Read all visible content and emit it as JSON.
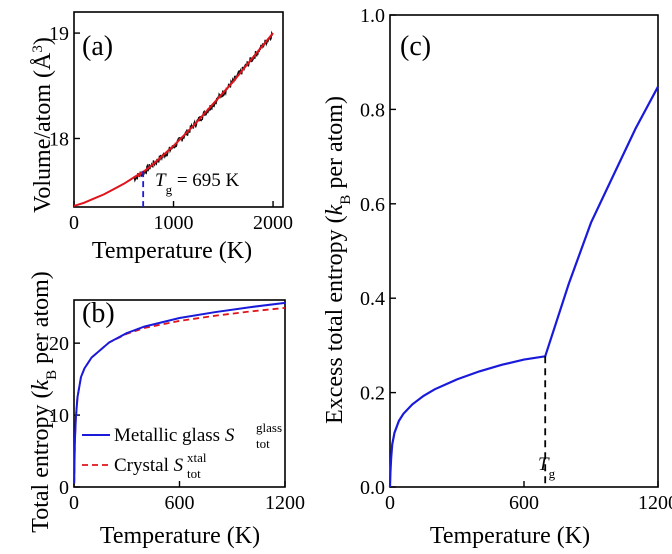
{
  "colors": {
    "glass": "#1a1adb",
    "crystal": "#e0141b",
    "noise": "#111111",
    "marker": "#1a1adb"
  },
  "chart_data": [
    {
      "id": "a",
      "panel_label": "(a)",
      "type": "line",
      "xlabel": "Temperature (K)",
      "ylabel_main": "Volume/atom (",
      "ylabel_unit": "Å",
      "ylabel_sup": "3",
      "ylabel_close": ")",
      "xlim": [
        0,
        2100
      ],
      "ylim": [
        17.35,
        19.2
      ],
      "xticks": [
        0,
        1000,
        2000
      ],
      "xtick_labels": [
        "0",
        "1000",
        "2000"
      ],
      "yticks": [
        18,
        19
      ],
      "ytick_labels": [
        "18",
        "19"
      ],
      "annotation": {
        "var": "T",
        "sub": "g",
        "rest": " = 695 K",
        "x": 695
      },
      "series": [
        {
          "style": "noisy",
          "x": [
            600,
            700,
            800,
            900,
            1000,
            1200,
            1400,
            1600,
            1800,
            2000
          ],
          "y": [
            17.62,
            17.68,
            17.76,
            17.84,
            17.92,
            18.12,
            18.33,
            18.54,
            18.77,
            19.0
          ]
        },
        {
          "style": "fit-low",
          "x": [
            0,
            100,
            200,
            300,
            400,
            500,
            600,
            700
          ],
          "y": [
            17.36,
            17.39,
            17.43,
            17.47,
            17.52,
            17.57,
            17.63,
            17.69
          ]
        },
        {
          "style": "fit-high",
          "x": [
            640,
            800,
            1000,
            1200,
            1400,
            1600,
            1800,
            2000
          ],
          "y": [
            17.64,
            17.76,
            17.93,
            18.12,
            18.33,
            18.54,
            18.77,
            19.0
          ]
        }
      ]
    },
    {
      "id": "b",
      "panel_label": "(b)",
      "type": "line",
      "xlabel": "Temperature (K)",
      "ylabel_main": "Total entropy (",
      "ylabel_var": "k",
      "ylabel_sub": "B",
      "ylabel_rest": " per atom)",
      "xlim": [
        0,
        1200
      ],
      "ylim": [
        0,
        26
      ],
      "xticks": [
        0,
        600,
        1200
      ],
      "xtick_labels": [
        "0",
        "600",
        "1200"
      ],
      "yticks": [
        0,
        10,
        20
      ],
      "ytick_labels": [
        "0",
        "10",
        "20"
      ],
      "legend": [
        {
          "text": "Metallic glass ",
          "var": "S",
          "sub": "tot",
          "sup": "glass",
          "style": "solid"
        },
        {
          "text": "Crystal ",
          "var": "S",
          "sub": "tot",
          "sup": "xtal",
          "style": "dashed"
        }
      ],
      "legend_position": "bottom-left",
      "series": [
        {
          "style": "glass",
          "x": [
            1,
            3,
            5,
            10,
            20,
            40,
            60,
            100,
            200,
            300,
            400,
            600,
            800,
            1000,
            1200
          ],
          "y": [
            0.5,
            3.5,
            6.5,
            9.5,
            12.5,
            15.3,
            16.5,
            18.0,
            20.1,
            21.4,
            22.3,
            23.5,
            24.3,
            25.0,
            25.6
          ]
        },
        {
          "style": "crystal",
          "x": [
            1,
            3,
            5,
            10,
            20,
            40,
            60,
            100,
            200,
            300,
            400,
            600,
            800,
            1000,
            1200
          ],
          "y": [
            0.5,
            3.5,
            6.5,
            9.5,
            12.5,
            15.3,
            16.5,
            18.0,
            20.1,
            21.3,
            22.1,
            23.1,
            23.8,
            24.4,
            24.9
          ]
        }
      ]
    },
    {
      "id": "c",
      "panel_label": "(c)",
      "type": "line",
      "xlabel": "Temperature (K)",
      "ylabel_main": "Excess total entropy (",
      "ylabel_var": "k",
      "ylabel_sub": "B",
      "ylabel_rest": " per atom)",
      "xlim": [
        0,
        1200
      ],
      "ylim": [
        0,
        1.0
      ],
      "xticks": [
        0,
        600,
        1200
      ],
      "xtick_labels": [
        "0",
        "600",
        "1200"
      ],
      "yticks": [
        0,
        0.2,
        0.4,
        0.6,
        0.8,
        1.0
      ],
      "ytick_labels": [
        "0.0",
        "0.2",
        "0.4",
        "0.6",
        "0.8",
        "1.0"
      ],
      "annotation": {
        "var": "T",
        "sub": "g",
        "x": 695
      },
      "series": [
        {
          "style": "glass",
          "x": [
            0,
            2,
            5,
            10,
            20,
            40,
            60,
            100,
            150,
            200,
            300,
            400,
            500,
            600,
            695,
            800,
            900,
            1000,
            1100,
            1200
          ],
          "y": [
            0,
            0.03,
            0.06,
            0.09,
            0.115,
            0.14,
            0.155,
            0.175,
            0.193,
            0.207,
            0.228,
            0.245,
            0.259,
            0.27,
            0.277,
            0.43,
            0.56,
            0.66,
            0.76,
            0.848
          ]
        }
      ]
    }
  ]
}
